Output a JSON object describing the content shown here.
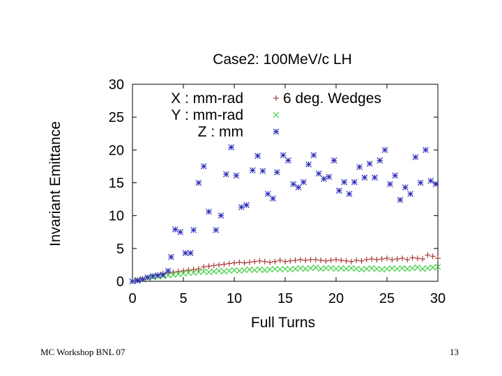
{
  "chart_data": {
    "type": "scatter",
    "title": "Case2: 100MeV/c LH",
    "xlabel": "Full Turns",
    "ylabel": "Invariant Emittance",
    "xlim": [
      0,
      30
    ],
    "ylim": [
      0,
      30
    ],
    "x_ticks": [
      "0",
      "5",
      "10",
      "15",
      "20",
      "25",
      "30"
    ],
    "y_ticks": [
      "0",
      "5",
      "10",
      "15",
      "20",
      "25",
      "30"
    ],
    "grid": false,
    "legend_position": "top-left",
    "annotation": "6 deg. Wedges",
    "series": [
      {
        "name": "X : mm-rad",
        "marker": "plus",
        "color": "#a52a2a",
        "points": [
          [
            0.0,
            0.0
          ],
          [
            0.5,
            0.2
          ],
          [
            1.0,
            0.4
          ],
          [
            1.5,
            0.6
          ],
          [
            2.0,
            0.8
          ],
          [
            2.5,
            1.0
          ],
          [
            3.0,
            1.2
          ],
          [
            3.5,
            1.3
          ],
          [
            4.0,
            1.4
          ],
          [
            4.5,
            1.5
          ],
          [
            5.0,
            1.6
          ],
          [
            5.5,
            1.7
          ],
          [
            6.0,
            1.8
          ],
          [
            6.5,
            1.9
          ],
          [
            7.0,
            2.2
          ],
          [
            7.5,
            2.3
          ],
          [
            8.0,
            2.4
          ],
          [
            8.5,
            2.5
          ],
          [
            9.0,
            2.6
          ],
          [
            9.5,
            2.7
          ],
          [
            10.0,
            2.8
          ],
          [
            10.5,
            2.9
          ],
          [
            11.0,
            2.8
          ],
          [
            11.5,
            2.9
          ],
          [
            12.0,
            3.0
          ],
          [
            12.5,
            3.1
          ],
          [
            13.0,
            3.0
          ],
          [
            13.5,
            2.9
          ],
          [
            14.0,
            3.0
          ],
          [
            14.5,
            3.2
          ],
          [
            15.0,
            3.0
          ],
          [
            15.5,
            3.1
          ],
          [
            16.0,
            3.2
          ],
          [
            16.5,
            3.3
          ],
          [
            17.0,
            3.2
          ],
          [
            17.5,
            3.3
          ],
          [
            18.0,
            3.3
          ],
          [
            18.5,
            3.2
          ],
          [
            19.0,
            3.1
          ],
          [
            19.5,
            3.2
          ],
          [
            20.0,
            3.3
          ],
          [
            20.5,
            3.2
          ],
          [
            21.0,
            3.1
          ],
          [
            21.5,
            3.0
          ],
          [
            22.0,
            3.2
          ],
          [
            22.5,
            3.1
          ],
          [
            23.0,
            3.3
          ],
          [
            23.5,
            3.4
          ],
          [
            24.0,
            3.3
          ],
          [
            24.5,
            3.4
          ],
          [
            25.0,
            3.5
          ],
          [
            25.5,
            3.3
          ],
          [
            26.0,
            3.4
          ],
          [
            26.5,
            3.5
          ],
          [
            27.0,
            3.3
          ],
          [
            27.5,
            3.6
          ],
          [
            28.0,
            3.5
          ],
          [
            28.5,
            3.4
          ],
          [
            29.0,
            4.0
          ],
          [
            29.5,
            3.8
          ],
          [
            30.0,
            3.5
          ]
        ]
      },
      {
        "name": "Y : mm-rad",
        "marker": "cross",
        "color": "#33cc33",
        "points": [
          [
            0.0,
            0.0
          ],
          [
            0.5,
            0.2
          ],
          [
            1.0,
            0.3
          ],
          [
            1.5,
            0.5
          ],
          [
            2.0,
            0.6
          ],
          [
            2.5,
            0.7
          ],
          [
            3.0,
            0.8
          ],
          [
            3.5,
            0.9
          ],
          [
            4.0,
            1.0
          ],
          [
            4.5,
            1.1
          ],
          [
            5.0,
            1.2
          ],
          [
            5.5,
            1.3
          ],
          [
            6.0,
            1.3
          ],
          [
            6.5,
            1.4
          ],
          [
            7.0,
            1.5
          ],
          [
            7.5,
            1.4
          ],
          [
            8.0,
            1.5
          ],
          [
            8.5,
            1.6
          ],
          [
            9.0,
            1.5
          ],
          [
            9.5,
            1.6
          ],
          [
            10.0,
            1.7
          ],
          [
            10.5,
            1.6
          ],
          [
            11.0,
            1.7
          ],
          [
            11.5,
            1.8
          ],
          [
            12.0,
            1.7
          ],
          [
            12.5,
            1.8
          ],
          [
            13.0,
            1.7
          ],
          [
            13.5,
            1.8
          ],
          [
            14.0,
            1.9
          ],
          [
            14.5,
            1.8
          ],
          [
            15.0,
            1.9
          ],
          [
            15.5,
            1.8
          ],
          [
            16.0,
            1.9
          ],
          [
            16.5,
            2.0
          ],
          [
            17.0,
            1.9
          ],
          [
            17.5,
            2.0
          ],
          [
            18.0,
            2.1
          ],
          [
            18.5,
            1.9
          ],
          [
            19.0,
            2.0
          ],
          [
            19.5,
            2.0
          ],
          [
            20.0,
            1.9
          ],
          [
            20.5,
            2.0
          ],
          [
            21.0,
            1.9
          ],
          [
            21.5,
            2.0
          ],
          [
            22.0,
            1.9
          ],
          [
            22.5,
            1.8
          ],
          [
            23.0,
            1.9
          ],
          [
            23.5,
            2.0
          ],
          [
            24.0,
            1.9
          ],
          [
            24.5,
            1.8
          ],
          [
            25.0,
            1.9
          ],
          [
            25.5,
            2.0
          ],
          [
            26.0,
            1.9
          ],
          [
            26.5,
            2.0
          ],
          [
            27.0,
            1.9
          ],
          [
            27.5,
            2.0
          ],
          [
            28.0,
            2.1
          ],
          [
            28.5,
            1.9
          ],
          [
            29.0,
            2.0
          ],
          [
            29.5,
            2.1
          ],
          [
            30.0,
            2.2
          ]
        ]
      },
      {
        "name": "Z : mm",
        "marker": "star",
        "color": "#2b2bbb",
        "points": [
          [
            0.0,
            0.0
          ],
          [
            0.5,
            0.1
          ],
          [
            1.0,
            0.3
          ],
          [
            1.5,
            0.6
          ],
          [
            2.0,
            0.8
          ],
          [
            2.5,
            0.9
          ],
          [
            3.0,
            1.0
          ],
          [
            3.5,
            1.6
          ],
          [
            3.8,
            3.7
          ],
          [
            4.2,
            7.9
          ],
          [
            4.7,
            7.5
          ],
          [
            5.2,
            4.3
          ],
          [
            5.7,
            4.3
          ],
          [
            6.0,
            7.8
          ],
          [
            6.5,
            15.0
          ],
          [
            7.0,
            17.5
          ],
          [
            7.5,
            10.6
          ],
          [
            8.2,
            7.8
          ],
          [
            8.7,
            10.0
          ],
          [
            9.2,
            16.3
          ],
          [
            9.7,
            20.4
          ],
          [
            10.2,
            16.1
          ],
          [
            10.7,
            11.3
          ],
          [
            11.2,
            11.6
          ],
          [
            11.8,
            16.9
          ],
          [
            12.3,
            19.1
          ],
          [
            12.8,
            16.8
          ],
          [
            13.3,
            13.3
          ],
          [
            13.8,
            12.6
          ],
          [
            14.2,
            16.6
          ],
          [
            14.8,
            19.2
          ],
          [
            15.3,
            18.4
          ],
          [
            15.8,
            14.8
          ],
          [
            16.3,
            14.3
          ],
          [
            16.8,
            15.1
          ],
          [
            17.3,
            17.8
          ],
          [
            17.8,
            19.2
          ],
          [
            18.3,
            16.4
          ],
          [
            18.8,
            15.6
          ],
          [
            19.3,
            15.9
          ],
          [
            19.8,
            18.4
          ],
          [
            20.3,
            13.8
          ],
          [
            20.8,
            15.1
          ],
          [
            21.3,
            13.3
          ],
          [
            21.8,
            15.1
          ],
          [
            22.3,
            17.4
          ],
          [
            22.8,
            15.8
          ],
          [
            23.3,
            17.9
          ],
          [
            23.8,
            15.8
          ],
          [
            24.3,
            18.4
          ],
          [
            24.8,
            20.0
          ],
          [
            25.3,
            14.8
          ],
          [
            25.8,
            16.1
          ],
          [
            26.3,
            12.4
          ],
          [
            26.8,
            14.3
          ],
          [
            27.3,
            13.3
          ],
          [
            27.8,
            18.9
          ],
          [
            28.3,
            15.0
          ],
          [
            28.8,
            20.0
          ],
          [
            29.3,
            15.3
          ],
          [
            29.8,
            14.8
          ]
        ]
      }
    ]
  },
  "footer": {
    "left": "MC Workshop BNL 07",
    "right": "13"
  }
}
